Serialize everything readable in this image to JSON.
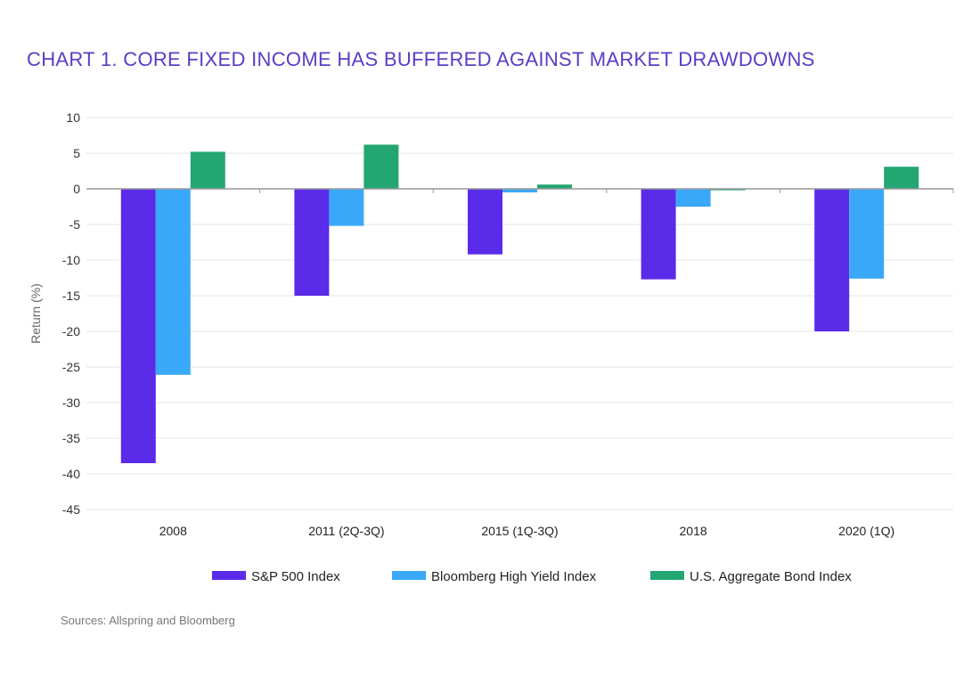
{
  "chart_data": {
    "type": "bar",
    "title": "CHART 1. CORE FIXED INCOME HAS BUFFERED AGAINST MARKET DRAWDOWNS",
    "xlabel": "",
    "ylabel": "Return (%)",
    "ylim": [
      -45,
      10
    ],
    "yticks": [
      10,
      5,
      0,
      -5,
      -10,
      -15,
      -20,
      -25,
      -30,
      -35,
      -40,
      -45
    ],
    "grid": true,
    "legend_position": "bottom",
    "categories": [
      "2008",
      "2011 (2Q-3Q)",
      "2015 (1Q-3Q)",
      "2018",
      "2020 (1Q)"
    ],
    "series": [
      {
        "name": "S&P 500 Index",
        "color": "#5a2be8",
        "values": [
          -38.5,
          -15.0,
          -9.2,
          -12.7,
          -20.0
        ]
      },
      {
        "name": "Bloomberg High Yield Index",
        "color": "#3aa8f8",
        "values": [
          -26.1,
          -5.2,
          -0.5,
          -2.5,
          -12.6
        ]
      },
      {
        "name": "U.S. Aggregate Bond Index",
        "color": "#23a672",
        "values": [
          5.2,
          6.2,
          0.6,
          -0.2,
          3.1
        ]
      }
    ],
    "source": "Sources: Allspring and Bloomberg"
  }
}
